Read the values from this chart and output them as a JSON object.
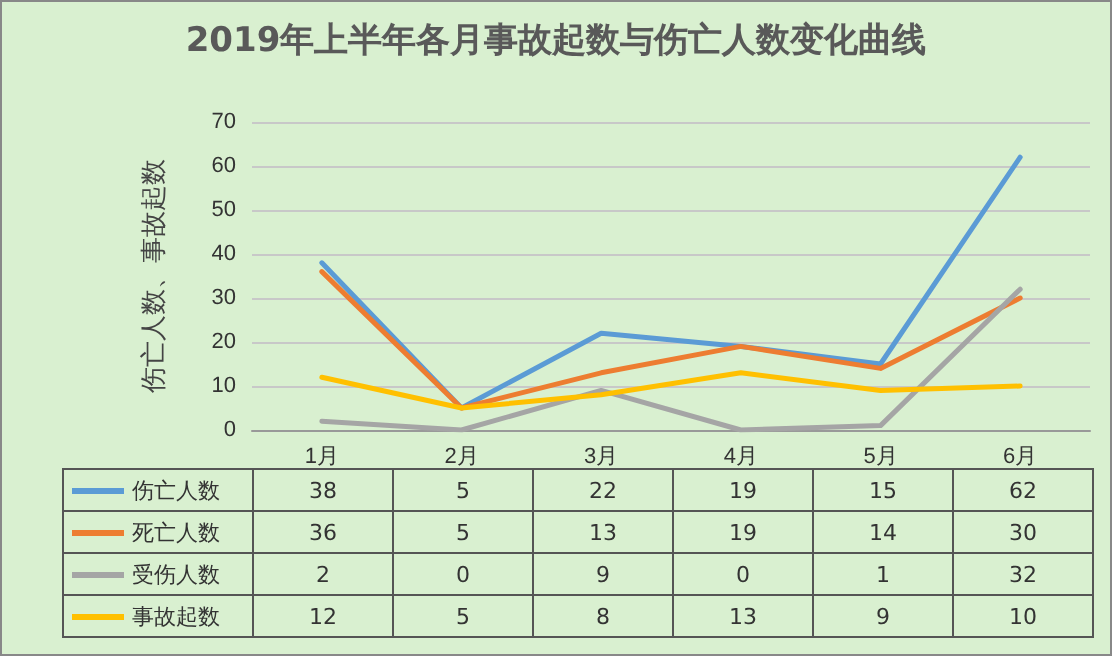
{
  "chart_data": {
    "type": "line",
    "title": "2019年上半年各月事故起数与伤亡人数变化曲线",
    "ylabel": "伤亡人数、事故起数",
    "categories": [
      "1月",
      "2月",
      "3月",
      "4月",
      "5月",
      "6月"
    ],
    "series": [
      {
        "name": "伤亡人数",
        "color": "#5b9bd5",
        "values": [
          38,
          5,
          22,
          19,
          15,
          62
        ]
      },
      {
        "name": "死亡人数",
        "color": "#ed7d31",
        "values": [
          36,
          5,
          13,
          19,
          14,
          30
        ]
      },
      {
        "name": "受伤人数",
        "color": "#a5a5a5",
        "values": [
          2,
          0,
          9,
          0,
          1,
          32
        ]
      },
      {
        "name": "事故起数",
        "color": "#ffc000",
        "values": [
          12,
          5,
          8,
          13,
          9,
          10
        ]
      }
    ],
    "ylim": [
      0,
      70
    ],
    "yticks": [
      0,
      10,
      20,
      30,
      40,
      50,
      60,
      70
    ],
    "grid": "y",
    "legend": "bottom",
    "marker": "none",
    "line_style": "solid",
    "data_labels": true
  }
}
